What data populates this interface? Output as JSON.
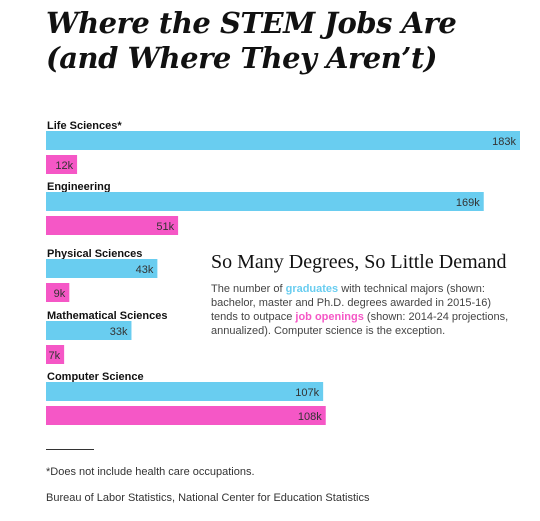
{
  "headline": {
    "line1": "Where the STEM Jobs Are",
    "line2": "(and Where They Aren’t)"
  },
  "colors": {
    "graduates": "#69cdf0",
    "job_openings": "#f557c6",
    "text": "#222222"
  },
  "callout": {
    "title": "So Many Degrees, So Little Demand",
    "body_part1": "The number of ",
    "graduates_word": "graduates",
    "body_part2": " with technical majors (shown: bachelor, master and Ph.D. degrees awarded in 2015-16) tends to outpace ",
    "openings_word": "job openings",
    "body_part3": " (shown: 2014-24 projections, annualized). Computer science is the exception."
  },
  "footnote": "*Does not include health care occupations.",
  "source": "Bureau of Labor Statistics, National Center for Education Statistics",
  "chart_data": {
    "type": "bar",
    "orientation": "horizontal",
    "title": "",
    "xlabel": "",
    "ylabel": "",
    "xlim": [
      0,
      183
    ],
    "unit_suffix": "k",
    "grid": false,
    "categories": [
      "Life Sciences*",
      "Engineering",
      "Physical Sciences",
      "Mathematical Sciences",
      "Computer Science"
    ],
    "series": [
      {
        "name": "graduates",
        "color": "#69cdf0",
        "values": [
          183,
          169,
          43,
          33,
          107
        ]
      },
      {
        "name": "job openings",
        "color": "#f557c6",
        "values": [
          12,
          51,
          9,
          7,
          108
        ]
      }
    ]
  }
}
